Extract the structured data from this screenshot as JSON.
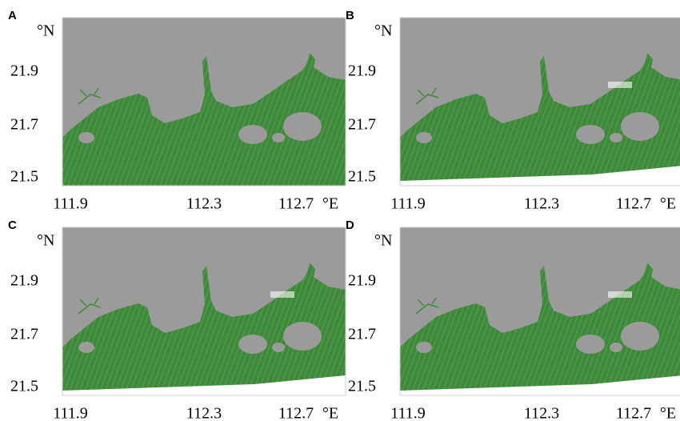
{
  "panels": [
    {
      "label": "A",
      "y_unit": "°N",
      "y_ticks": [
        "21.9",
        "21.7",
        "21.5"
      ],
      "x_ticks": [
        "111.9",
        "112.3",
        "112.7"
      ],
      "x_unit": "°E"
    },
    {
      "label": "B",
      "y_unit": "°N",
      "y_ticks": [
        "21.9",
        "21.7",
        "21.5"
      ],
      "x_ticks": [
        "111.9",
        "112.3",
        "112.7"
      ],
      "x_unit": "°E"
    },
    {
      "label": "C",
      "y_unit": "°N",
      "y_ticks": [
        "21.9",
        "21.7",
        "21.5"
      ],
      "x_ticks": [
        "111.9",
        "112.3",
        "112.7"
      ],
      "x_unit": "°E"
    },
    {
      "label": "D",
      "y_unit": "°N",
      "y_ticks": [
        "21.9",
        "21.7",
        "21.5"
      ],
      "x_ticks": [
        "111.9",
        "112.3",
        "112.7"
      ],
      "x_unit": "°E"
    }
  ]
}
